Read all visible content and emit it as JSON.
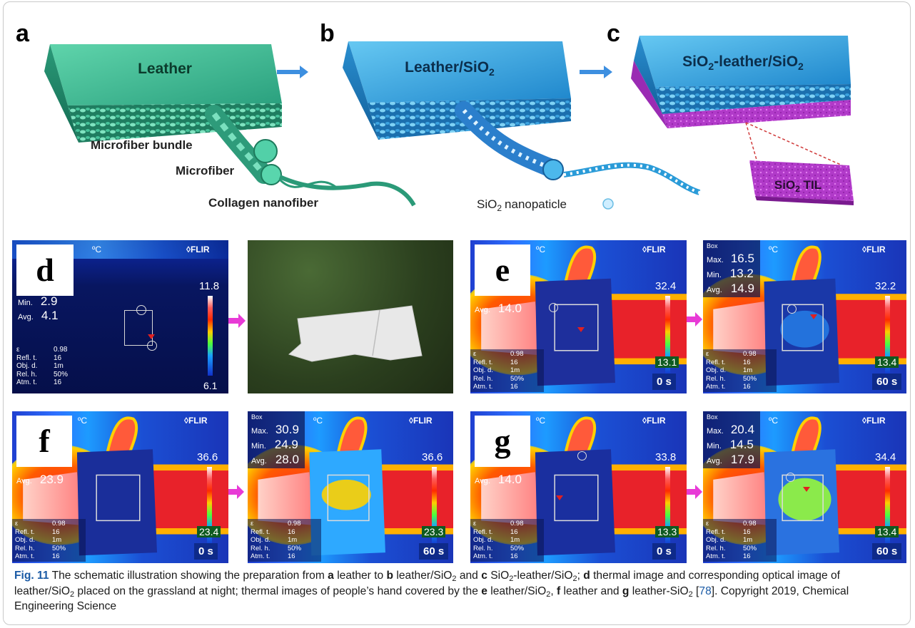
{
  "schematic": {
    "a": {
      "letter": "a",
      "label": "Leather",
      "callouts": [
        "Microfiber bundle",
        "Microfiber",
        "Collagen nanofiber"
      ]
    },
    "b": {
      "letter": "b",
      "label": "Leather/SiO",
      "label_sub": "2",
      "callouts": [
        "SiO",
        "nanopaticle"
      ],
      "callout_sub": "2"
    },
    "c": {
      "letter": "c",
      "label": "SiO",
      "label_mid": "-leather/SiO",
      "label_sub": "2",
      "callout": "SiO",
      "callout_sub": "2",
      "callout_tail": " TIL"
    }
  },
  "thermal": {
    "d": {
      "letter": "d",
      "unit": "ºC",
      "brand": "FLIR",
      "min_label": "Min.",
      "min": "2.9",
      "avg_label": "Avg.",
      "avg": "4.1",
      "scale_max": "11.8",
      "scale_min": "6.1",
      "params": [
        [
          "ε",
          "0.98"
        ],
        [
          "Refl. t.",
          "16"
        ],
        [
          "Obj. d.",
          "1m"
        ],
        [
          "Rel. h.",
          "50%"
        ],
        [
          "Atm. t.",
          "16"
        ]
      ]
    },
    "e1": {
      "letter": "e",
      "unit": "ºC",
      "brand": "FLIR",
      "avg_label": "Avg.",
      "avg": "14.0",
      "scale_max": "32.4",
      "scale_min": "13.1",
      "time": "0 s",
      "params": [
        [
          "ε",
          "0.98"
        ],
        [
          "Refl. t.",
          "16"
        ],
        [
          "Obj. d.",
          "1m"
        ],
        [
          "Rel. h.",
          "50%"
        ],
        [
          "Atm. t.",
          "16"
        ]
      ]
    },
    "e2": {
      "box": "Box",
      "unit": "ºC",
      "brand": "FLIR",
      "max_label": "Max.",
      "max": "16.5",
      "min_label": "Min.",
      "min": "13.2",
      "avg_label": "Avg.",
      "avg": "14.9",
      "scale_max": "32.2",
      "scale_min": "13.4",
      "time": "60 s",
      "params": [
        [
          "ε",
          "0.98"
        ],
        [
          "Refl. t.",
          "16"
        ],
        [
          "Obj. d.",
          "1m"
        ],
        [
          "Rel. h.",
          "50%"
        ],
        [
          "Atm. t.",
          "16"
        ]
      ]
    },
    "f1": {
      "letter": "f",
      "unit": "ºC",
      "brand": "FLIR",
      "avg_label": "Avg.",
      "avg": "23.9",
      "scale_max": "36.6",
      "scale_min": "23.4",
      "time": "0 s",
      "params": [
        [
          "ε",
          "0.98"
        ],
        [
          "Refl. t.",
          "16"
        ],
        [
          "Obj. d.",
          "1m"
        ],
        [
          "Rel. h.",
          "50%"
        ],
        [
          "Atm. t.",
          "16"
        ]
      ]
    },
    "f2": {
      "box": "Box",
      "unit": "ºC",
      "brand": "FLIR",
      "max_label": "Max.",
      "max": "30.9",
      "min_label": "Min.",
      "min": "24.9",
      "avg_label": "Avg.",
      "avg": "28.0",
      "scale_max": "36.6",
      "scale_min": "23.3",
      "time": "60 s",
      "params": [
        [
          "ε",
          "0.98"
        ],
        [
          "Refl. t.",
          "16"
        ],
        [
          "Obj. d.",
          "1m"
        ],
        [
          "Rel. h.",
          "50%"
        ],
        [
          "Atm. t.",
          "16"
        ]
      ]
    },
    "g1": {
      "letter": "g",
      "unit": "ºC",
      "brand": "FLIR",
      "avg_label": "Avg.",
      "avg": "14.0",
      "scale_max": "33.8",
      "scale_min": "13.3",
      "time": "0 s",
      "params": [
        [
          "ε",
          "0.98"
        ],
        [
          "Refl. t.",
          "16"
        ],
        [
          "Obj. d.",
          "1m"
        ],
        [
          "Rel. h.",
          "50%"
        ],
        [
          "Atm. t.",
          "16"
        ]
      ]
    },
    "g2": {
      "box": "Box",
      "unit": "ºC",
      "brand": "FLIR",
      "max_label": "Max.",
      "max": "20.4",
      "min_label": "Min.",
      "min": "14.5",
      "avg_label": "Avg.",
      "avg": "17.9",
      "scale_max": "34.4",
      "scale_min": "13.4",
      "time": "60 s",
      "params": [
        [
          "ε",
          "0.98"
        ],
        [
          "Refl. t.",
          "16"
        ],
        [
          "Obj. d.",
          "1m"
        ],
        [
          "Rel. h.",
          "50%"
        ],
        [
          "Atm. t.",
          "16"
        ]
      ]
    }
  },
  "caption": {
    "fig_label": "Fig. 11",
    "t1": "  The schematic illustration showing the preparation from ",
    "a": "a",
    "t2": " leather to ",
    "b": "b",
    "t3": " leather/SiO",
    "s1": "2",
    "t4": " and ",
    "c": "c",
    "t5": " SiO",
    "s2": "2",
    "t6": "-leather/SiO",
    "s3": "2",
    "t7": "; ",
    "d": "d",
    "t8": " thermal image and corresponding optical image of leather/SiO",
    "s4": "2",
    "t9": " placed on the grassland at night; thermal images of people’s hand covered by the ",
    "e": "e",
    "t10": " leather/SiO",
    "s5": "2",
    "t11": ", ",
    "f": "f",
    "t12": " leather and ",
    "g": "g",
    "t13": " leather-SiO",
    "s6": "2",
    "t14": " [",
    "ref": "78",
    "t15": "]. Copyright 2019, Chemical Engineering Science"
  },
  "colors": {
    "arrow_blue": "#3d8fe0",
    "arrow_magenta": "#e83ad6",
    "leather_green": "#2fae86",
    "sio2_blue": "#2a9bd8",
    "til_purple": "#b13ac9",
    "link_blue": "#1a5aa5"
  }
}
